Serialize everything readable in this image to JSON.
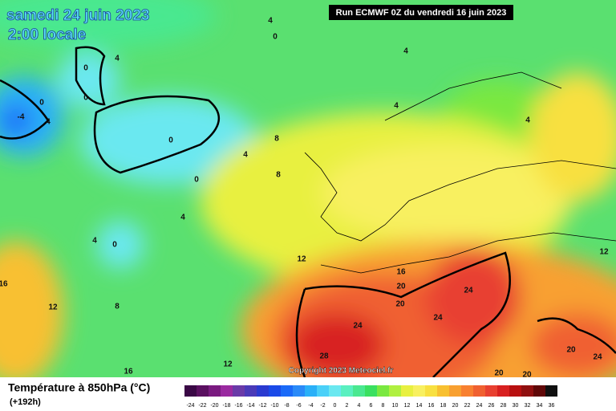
{
  "header": {
    "title": "samedi 24 juin 2023",
    "subtitle": "2:00 locale",
    "run": "Run ECMWF 0Z du vendredi 16 juin 2023"
  },
  "copyright": "Copyright 2023 Meteociel.fr",
  "contour_labels": [
    4,
    0,
    4,
    0,
    0,
    0,
    -4,
    4,
    0,
    8,
    4,
    8,
    0,
    4,
    4,
    0,
    12,
    16,
    16,
    20,
    20,
    12,
    8,
    24,
    24,
    24,
    28,
    20,
    24,
    12,
    16,
    20,
    20,
    12,
    4,
    4,
    4
  ],
  "legend": {
    "title": "Température à 850hPa (°C)",
    "lead_time": "(+192h)",
    "ticks": [
      -24,
      -22,
      -20,
      -18,
      -16,
      -14,
      -12,
      -10,
      -8,
      -6,
      -4,
      -2,
      0,
      2,
      4,
      6,
      8,
      10,
      12,
      14,
      16,
      18,
      20,
      22,
      24,
      26,
      28,
      30,
      32,
      34,
      36
    ],
    "colors": [
      "#3a0845",
      "#5a1060",
      "#7a1a80",
      "#9a2aa0",
      "#6a3aa8",
      "#4a3ab8",
      "#2a3ad0",
      "#1a4ae8",
      "#1a6af8",
      "#2a8af8",
      "#2ab0f8",
      "#4ad0f8",
      "#6ae8f0",
      "#5af0c0",
      "#4ae890",
      "#3ae060",
      "#7ae840",
      "#b0f040",
      "#e8f040",
      "#f8f060",
      "#f8e040",
      "#f8c030",
      "#f8a030",
      "#f88030",
      "#f06030",
      "#e84030",
      "#d82020",
      "#b81010",
      "#901010",
      "#600808",
      "#101010"
    ]
  }
}
